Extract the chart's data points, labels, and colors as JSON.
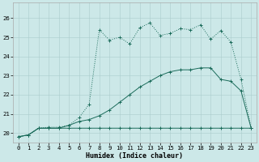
{
  "background_color": "#cce8e8",
  "grid_color": "#aacccc",
  "line_color": "#1a6b5a",
  "xlim": [
    -0.5,
    23.5
  ],
  "ylim": [
    19.5,
    26.8
  ],
  "xlabel": "Humidex (Indice chaleur)",
  "yticks": [
    20,
    21,
    22,
    23,
    24,
    25,
    26
  ],
  "xticks": [
    0,
    1,
    2,
    3,
    4,
    5,
    6,
    7,
    8,
    9,
    10,
    11,
    12,
    13,
    14,
    15,
    16,
    17,
    18,
    19,
    20,
    21,
    22,
    23
  ],
  "line1_x": [
    0,
    1,
    2,
    3,
    4,
    5,
    6,
    7,
    8,
    9,
    10,
    11,
    12,
    13,
    14,
    15,
    16,
    17,
    18,
    19,
    20,
    21,
    22,
    23
  ],
  "line1_y": [
    19.8,
    19.9,
    20.25,
    20.25,
    20.25,
    20.25,
    20.25,
    20.25,
    20.25,
    20.25,
    20.25,
    20.25,
    20.25,
    20.25,
    20.25,
    20.25,
    20.25,
    20.25,
    20.25,
    20.25,
    20.25,
    20.25,
    20.25,
    20.25
  ],
  "line2_x": [
    0,
    1,
    2,
    3,
    4,
    5,
    6,
    7,
    8,
    9,
    10,
    11,
    12,
    13,
    14,
    15,
    16,
    17,
    18,
    19,
    20,
    21,
    22,
    23
  ],
  "line2_y": [
    19.8,
    19.9,
    20.25,
    20.25,
    20.25,
    20.4,
    20.6,
    20.7,
    20.9,
    21.2,
    21.6,
    22.0,
    22.4,
    22.7,
    23.0,
    23.2,
    23.3,
    23.3,
    23.4,
    23.4,
    22.8,
    22.7,
    22.2,
    20.25
  ],
  "line3_x": [
    0,
    1,
    2,
    3,
    4,
    5,
    6,
    7,
    8,
    9,
    10,
    11,
    12,
    13,
    14,
    15,
    16,
    17,
    18,
    19,
    20,
    21,
    22,
    23
  ],
  "line3_y": [
    19.8,
    19.9,
    20.25,
    20.3,
    20.3,
    20.4,
    20.8,
    21.5,
    25.4,
    24.85,
    25.0,
    24.65,
    25.5,
    25.75,
    25.1,
    25.2,
    25.45,
    25.4,
    25.65,
    24.9,
    25.35,
    24.75,
    22.8,
    20.25
  ],
  "axis_fontsize": 6.0,
  "tick_fontsize": 5.2
}
